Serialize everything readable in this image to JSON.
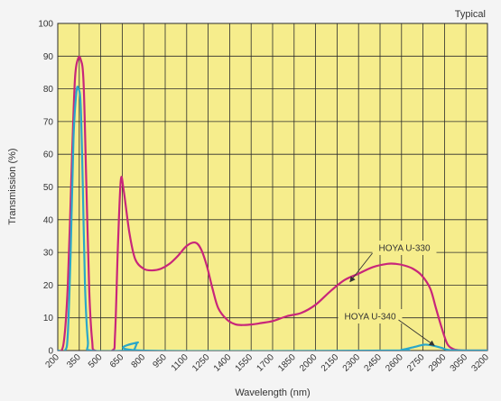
{
  "chart_data": {
    "type": "line",
    "title": "",
    "note": "Typical",
    "xlabel": "Wavelength (nm)",
    "ylabel": "Transmission (%)",
    "xlim": [
      200,
      3200
    ],
    "ylim": [
      0,
      100
    ],
    "x_ticks": [
      200,
      350,
      500,
      650,
      800,
      950,
      1100,
      1250,
      1400,
      1550,
      1700,
      1850,
      2000,
      2150,
      2300,
      2450,
      2600,
      2750,
      2900,
      3050,
      3200
    ],
    "y_ticks": [
      0,
      10,
      20,
      30,
      40,
      50,
      60,
      70,
      80,
      90,
      100
    ],
    "grid": true,
    "colors": {
      "plot_bg": "#f6ed8c",
      "grid": "#2b2b2b",
      "page_bg": "#f4f4f4"
    },
    "series": [
      {
        "name": "HOYA U-330",
        "color": "#c8267a",
        "x": [
          200,
          240,
          270,
          300,
          320,
          340,
          360,
          380,
          400,
          420,
          440,
          460,
          580,
          600,
          620,
          640,
          660,
          700,
          740,
          800,
          860,
          920,
          980,
          1040,
          1100,
          1160,
          1200,
          1240,
          1280,
          1320,
          1380,
          1440,
          1500,
          1560,
          1620,
          1700,
          1800,
          1900,
          2000,
          2100,
          2200,
          2300,
          2400,
          2500,
          2560,
          2620,
          2680,
          2740,
          2800,
          2840,
          2880,
          2920,
          2960,
          3000,
          3050,
          3100,
          3200
        ],
        "y": [
          0,
          2,
          20,
          60,
          83,
          89,
          89,
          82,
          50,
          18,
          3,
          0,
          0,
          5,
          32,
          52,
          49,
          36,
          28,
          25,
          24.5,
          25,
          26.5,
          29,
          32,
          33,
          31,
          26,
          19,
          13,
          9.5,
          8,
          7.8,
          8,
          8.4,
          9,
          10.5,
          11.5,
          14,
          18,
          21.5,
          23.5,
          25.5,
          26.5,
          26.5,
          26,
          25,
          23,
          19,
          13,
          7,
          2,
          0.5,
          0.1,
          0,
          0,
          0
        ]
      },
      {
        "name": "HOYA U-340",
        "color": "#2aa7c9",
        "x": [
          200,
          250,
          270,
          290,
          310,
          330,
          345,
          360,
          375,
          390,
          410,
          430,
          700,
          730,
          760,
          790,
          2500,
          2600,
          2700,
          2760,
          2820,
          2880,
          2950,
          3200
        ],
        "y": [
          0,
          0,
          5,
          30,
          65,
          79,
          80,
          75,
          50,
          20,
          3,
          0,
          0,
          0,
          2.5,
          0,
          0,
          0.2,
          1.2,
          1.8,
          1.5,
          0.8,
          0.1,
          0
        ]
      }
    ],
    "annotations": [
      {
        "text": "HOYA U-330",
        "series": "HOYA U-330",
        "points_to": [
          2240,
          21
        ]
      },
      {
        "text": "HOYA U-340",
        "series": "HOYA U-340",
        "points_to": [
          2830,
          1.5
        ]
      }
    ]
  }
}
